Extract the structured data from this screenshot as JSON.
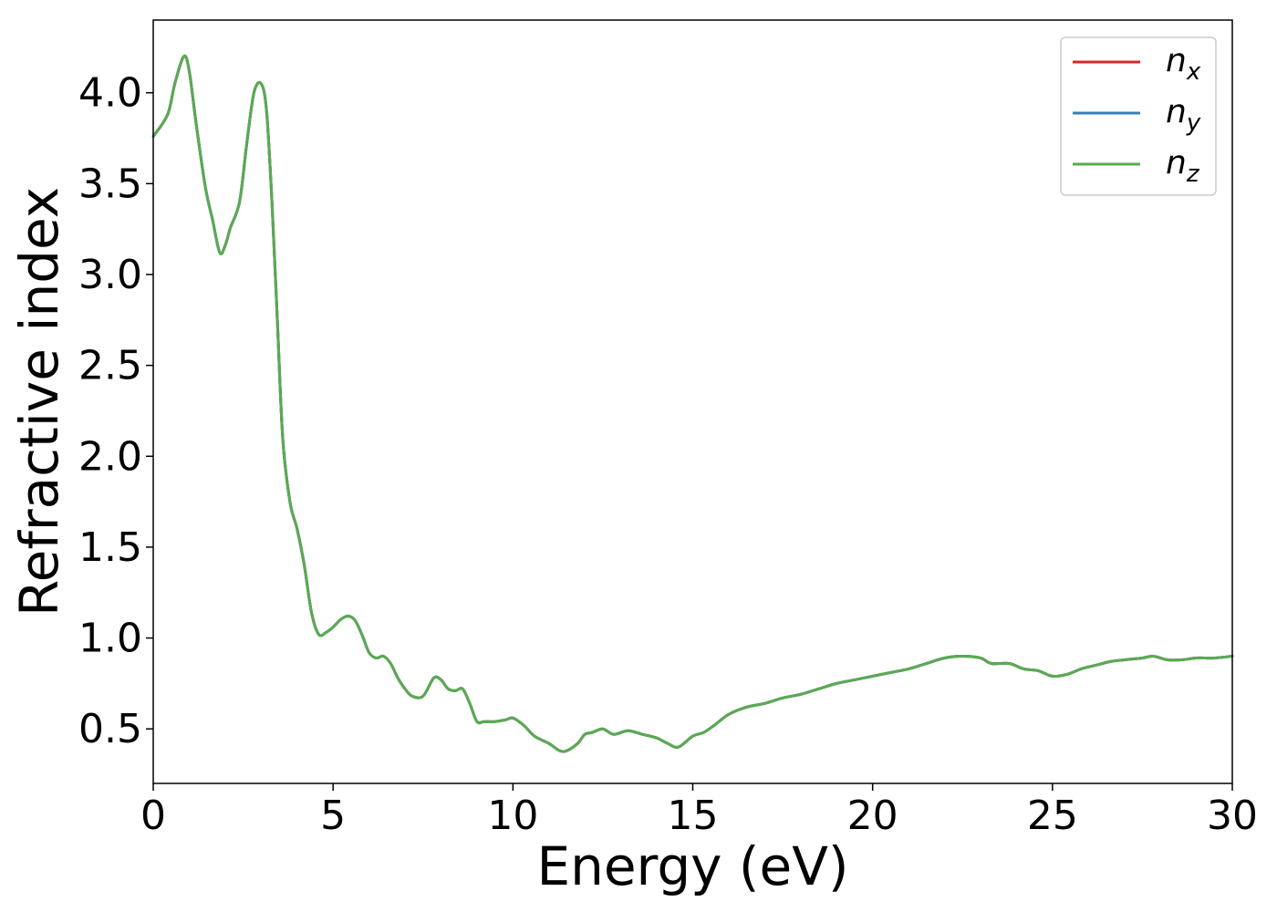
{
  "chart_data": {
    "type": "line",
    "title": "",
    "xlabel": "Energy (eV)",
    "ylabel": "Refractive index",
    "xlim": [
      0,
      30
    ],
    "ylim": [
      0.2,
      4.4
    ],
    "xticks": [
      0,
      5,
      10,
      15,
      20,
      25,
      30
    ],
    "xtick_labels": [
      "0",
      "5",
      "10",
      "15",
      "20",
      "25",
      "30"
    ],
    "yticks": [
      0.5,
      1.0,
      1.5,
      2.0,
      2.5,
      3.0,
      3.5,
      4.0
    ],
    "ytick_labels": [
      "0.5",
      "1.0",
      "1.5",
      "2.0",
      "2.5",
      "3.0",
      "3.5",
      "4.0"
    ],
    "grid": false,
    "legend_position": "top-right",
    "series": [
      {
        "name": "n_x",
        "label_base": "n",
        "label_sub": "x",
        "color": "#d62728",
        "x": [
          0,
          0.4,
          0.6,
          0.85,
          1.0,
          1.2,
          1.45,
          1.65,
          1.85,
          2.0,
          2.15,
          2.4,
          2.6,
          2.8,
          3.0,
          3.15,
          3.3,
          3.45,
          3.6,
          3.8,
          4.0,
          4.2,
          4.4,
          4.6,
          4.8,
          5.0,
          5.2,
          5.4,
          5.6,
          5.8,
          6.0,
          6.2,
          6.4,
          6.6,
          6.8,
          7.0,
          7.2,
          7.5,
          7.8,
          8.0,
          8.2,
          8.4,
          8.6,
          8.8,
          9.0,
          9.2,
          9.5,
          9.8,
          10.0,
          10.3,
          10.6,
          11.0,
          11.3,
          11.5,
          11.8,
          12.0,
          12.2,
          12.5,
          12.8,
          13.2,
          13.6,
          14.0,
          14.3,
          14.6,
          15.0,
          15.3,
          15.6,
          16.0,
          16.5,
          17.0,
          17.5,
          18.0,
          18.5,
          19.0,
          19.5,
          20.0,
          20.5,
          21.0,
          21.5,
          22.0,
          22.5,
          23.0,
          23.3,
          23.8,
          24.2,
          24.6,
          25.0,
          25.4,
          25.8,
          26.2,
          26.6,
          27.0,
          27.5,
          27.8,
          28.2,
          28.6,
          29.0,
          29.5,
          30.0
        ],
        "y": [
          3.76,
          3.88,
          4.05,
          4.2,
          4.12,
          3.82,
          3.48,
          3.3,
          3.12,
          3.16,
          3.26,
          3.4,
          3.72,
          4.0,
          4.05,
          3.9,
          3.4,
          2.75,
          2.1,
          1.75,
          1.6,
          1.4,
          1.14,
          1.02,
          1.03,
          1.06,
          1.1,
          1.12,
          1.1,
          1.02,
          0.92,
          0.89,
          0.9,
          0.86,
          0.78,
          0.72,
          0.68,
          0.68,
          0.78,
          0.77,
          0.72,
          0.71,
          0.72,
          0.64,
          0.54,
          0.54,
          0.54,
          0.55,
          0.56,
          0.52,
          0.46,
          0.42,
          0.38,
          0.38,
          0.42,
          0.47,
          0.48,
          0.5,
          0.47,
          0.49,
          0.47,
          0.45,
          0.42,
          0.4,
          0.46,
          0.48,
          0.52,
          0.58,
          0.62,
          0.64,
          0.67,
          0.69,
          0.72,
          0.75,
          0.77,
          0.79,
          0.81,
          0.83,
          0.86,
          0.89,
          0.9,
          0.89,
          0.86,
          0.86,
          0.83,
          0.82,
          0.79,
          0.8,
          0.83,
          0.85,
          0.87,
          0.88,
          0.89,
          0.9,
          0.88,
          0.88,
          0.89,
          0.89,
          0.9
        ]
      },
      {
        "name": "n_y",
        "label_base": "n",
        "label_sub": "y",
        "color": "#3a7eb8",
        "x": [
          0,
          0.4,
          0.6,
          0.85,
          1.0,
          1.2,
          1.45,
          1.65,
          1.85,
          2.0,
          2.15,
          2.4,
          2.6,
          2.8,
          3.0,
          3.15,
          3.3,
          3.45,
          3.6,
          3.8,
          4.0,
          4.2,
          4.4,
          4.6,
          4.8,
          5.0,
          5.2,
          5.4,
          5.6,
          5.8,
          6.0,
          6.2,
          6.4,
          6.6,
          6.8,
          7.0,
          7.2,
          7.5,
          7.8,
          8.0,
          8.2,
          8.4,
          8.6,
          8.8,
          9.0,
          9.2,
          9.5,
          9.8,
          10.0,
          10.3,
          10.6,
          11.0,
          11.3,
          11.5,
          11.8,
          12.0,
          12.2,
          12.5,
          12.8,
          13.2,
          13.6,
          14.0,
          14.3,
          14.6,
          15.0,
          15.3,
          15.6,
          16.0,
          16.5,
          17.0,
          17.5,
          18.0,
          18.5,
          19.0,
          19.5,
          20.0,
          20.5,
          21.0,
          21.5,
          22.0,
          22.5,
          23.0,
          23.3,
          23.8,
          24.2,
          24.6,
          25.0,
          25.4,
          25.8,
          26.2,
          26.6,
          27.0,
          27.5,
          27.8,
          28.2,
          28.6,
          29.0,
          29.5,
          30.0
        ],
        "y": [
          3.76,
          3.88,
          4.05,
          4.2,
          4.12,
          3.82,
          3.48,
          3.3,
          3.12,
          3.16,
          3.26,
          3.4,
          3.72,
          4.0,
          4.05,
          3.9,
          3.4,
          2.75,
          2.1,
          1.75,
          1.6,
          1.4,
          1.14,
          1.02,
          1.03,
          1.06,
          1.1,
          1.12,
          1.1,
          1.02,
          0.92,
          0.89,
          0.9,
          0.86,
          0.78,
          0.72,
          0.68,
          0.68,
          0.78,
          0.77,
          0.72,
          0.71,
          0.72,
          0.64,
          0.54,
          0.54,
          0.54,
          0.55,
          0.56,
          0.52,
          0.46,
          0.42,
          0.38,
          0.38,
          0.42,
          0.47,
          0.48,
          0.5,
          0.47,
          0.49,
          0.47,
          0.45,
          0.42,
          0.4,
          0.46,
          0.48,
          0.52,
          0.58,
          0.62,
          0.64,
          0.67,
          0.69,
          0.72,
          0.75,
          0.77,
          0.79,
          0.81,
          0.83,
          0.86,
          0.89,
          0.9,
          0.89,
          0.86,
          0.86,
          0.83,
          0.82,
          0.79,
          0.8,
          0.83,
          0.85,
          0.87,
          0.88,
          0.89,
          0.9,
          0.88,
          0.88,
          0.89,
          0.89,
          0.9
        ]
      },
      {
        "name": "n_z",
        "label_base": "n",
        "label_sub": "z",
        "color": "#5aaa52",
        "x": [
          0,
          0.4,
          0.6,
          0.85,
          1.0,
          1.2,
          1.45,
          1.65,
          1.85,
          2.0,
          2.15,
          2.4,
          2.6,
          2.8,
          3.0,
          3.15,
          3.3,
          3.45,
          3.6,
          3.8,
          4.0,
          4.2,
          4.4,
          4.6,
          4.8,
          5.0,
          5.2,
          5.4,
          5.6,
          5.8,
          6.0,
          6.2,
          6.4,
          6.6,
          6.8,
          7.0,
          7.2,
          7.5,
          7.8,
          8.0,
          8.2,
          8.4,
          8.6,
          8.8,
          9.0,
          9.2,
          9.5,
          9.8,
          10.0,
          10.3,
          10.6,
          11.0,
          11.3,
          11.5,
          11.8,
          12.0,
          12.2,
          12.5,
          12.8,
          13.2,
          13.6,
          14.0,
          14.3,
          14.6,
          15.0,
          15.3,
          15.6,
          16.0,
          16.5,
          17.0,
          17.5,
          18.0,
          18.5,
          19.0,
          19.5,
          20.0,
          20.5,
          21.0,
          21.5,
          22.0,
          22.5,
          23.0,
          23.3,
          23.8,
          24.2,
          24.6,
          25.0,
          25.4,
          25.8,
          26.2,
          26.6,
          27.0,
          27.5,
          27.8,
          28.2,
          28.6,
          29.0,
          29.5,
          30.0
        ],
        "y": [
          3.76,
          3.88,
          4.05,
          4.2,
          4.12,
          3.82,
          3.48,
          3.3,
          3.12,
          3.16,
          3.26,
          3.4,
          3.72,
          4.0,
          4.05,
          3.9,
          3.4,
          2.75,
          2.1,
          1.75,
          1.6,
          1.4,
          1.14,
          1.02,
          1.03,
          1.06,
          1.1,
          1.12,
          1.1,
          1.02,
          0.92,
          0.89,
          0.9,
          0.86,
          0.78,
          0.72,
          0.68,
          0.68,
          0.78,
          0.77,
          0.72,
          0.71,
          0.72,
          0.64,
          0.54,
          0.54,
          0.54,
          0.55,
          0.56,
          0.52,
          0.46,
          0.42,
          0.38,
          0.38,
          0.42,
          0.47,
          0.48,
          0.5,
          0.47,
          0.49,
          0.47,
          0.45,
          0.42,
          0.4,
          0.46,
          0.48,
          0.52,
          0.58,
          0.62,
          0.64,
          0.67,
          0.69,
          0.72,
          0.75,
          0.77,
          0.79,
          0.81,
          0.83,
          0.86,
          0.89,
          0.9,
          0.89,
          0.86,
          0.86,
          0.83,
          0.82,
          0.79,
          0.8,
          0.83,
          0.85,
          0.87,
          0.88,
          0.89,
          0.9,
          0.88,
          0.88,
          0.89,
          0.89,
          0.9
        ]
      }
    ]
  }
}
